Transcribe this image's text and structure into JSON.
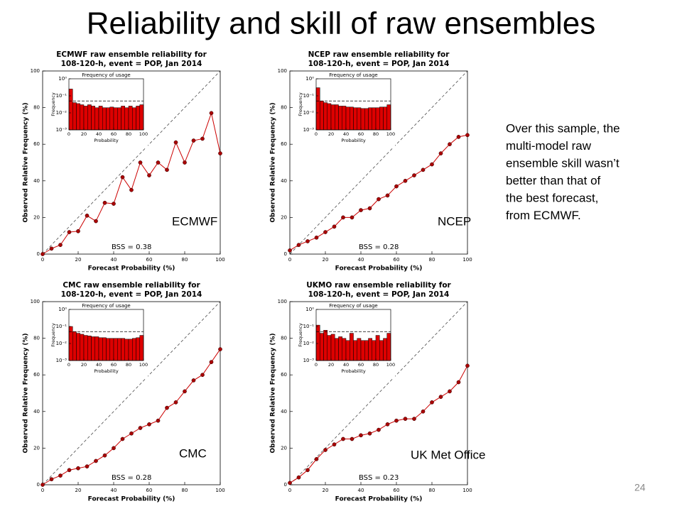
{
  "slide": {
    "title": "Reliability and skill of raw ensembles",
    "note": [
      "Over this sample, the",
      "multi-model raw",
      "ensemble skill wasn’t",
      "better than that of",
      "the best forecast,",
      "from ECMWF."
    ],
    "page_number": "24"
  },
  "chart_data": [
    {
      "type": "line",
      "title": [
        "ECMWF raw ensemble reliability for",
        "108-120-h, event = POP, Jan 2014"
      ],
      "xlabel": "Forecast Probability (%)",
      "ylabel": "Observed Relative Frequency (%)",
      "x": [
        0,
        5,
        10,
        15,
        20,
        25,
        30,
        35,
        40,
        45,
        50,
        55,
        60,
        65,
        70,
        75,
        80,
        85,
        90,
        95,
        100
      ],
      "values": [
        0,
        3,
        5,
        12,
        12.5,
        21,
        18,
        28,
        27.5,
        42,
        35,
        50,
        43,
        50,
        46,
        61,
        50,
        62,
        63,
        77,
        55
      ],
      "color": "#cc0000",
      "xlim": [
        0,
        100
      ],
      "ylim": [
        0,
        100
      ],
      "xticks": [
        0,
        20,
        40,
        60,
        80,
        100
      ],
      "yticks": [
        0,
        20,
        40,
        60,
        80,
        100
      ],
      "annotation": "BSS = 0.38",
      "label": "ECMWF",
      "inset": {
        "type": "histogram",
        "title": "Frequency of usage",
        "xlabel": "Probability",
        "ylabel": "Frequency",
        "bins": [
          0,
          5,
          10,
          15,
          20,
          25,
          30,
          35,
          40,
          45,
          50,
          55,
          60,
          65,
          70,
          75,
          80,
          85,
          90,
          95,
          100
        ],
        "values": [
          0.25,
          0.04,
          0.035,
          0.03,
          0.025,
          0.03,
          0.025,
          0.02,
          0.025,
          0.02,
          0.02,
          0.022,
          0.02,
          0.02,
          0.025,
          0.02,
          0.025,
          0.02,
          0.025,
          0.03
        ],
        "color": "#dd0000",
        "xlim": [
          0,
          100
        ],
        "ylim": [
          0.001,
          1
        ],
        "log_y": true,
        "reference": 0.05,
        "xticks": [
          0,
          20,
          40,
          60,
          80,
          100
        ],
        "yticks": [
          {
            "value": 1,
            "label": "10⁰"
          },
          {
            "value": 0.1,
            "label": "10⁻¹"
          },
          {
            "value": 0.01,
            "label": "10⁻²"
          },
          {
            "value": 0.001,
            "label": "10⁻³"
          }
        ]
      }
    },
    {
      "type": "line",
      "title": [
        "NCEP raw ensemble reliability for",
        "108-120-h, event = POP, Jan 2014"
      ],
      "xlabel": "Forecast Probability (%)",
      "ylabel": "Observed Relative Frequency (%)",
      "x": [
        0,
        5,
        10,
        15,
        20,
        25,
        30,
        35,
        40,
        45,
        50,
        55,
        60,
        65,
        70,
        75,
        80,
        85,
        90,
        95,
        100
      ],
      "values": [
        2,
        5,
        7,
        9,
        12,
        15,
        20,
        20,
        24,
        25,
        30,
        32,
        37,
        40,
        43,
        46,
        49,
        55,
        60,
        64,
        65
      ],
      "color": "#cc0000",
      "xlim": [
        0,
        100
      ],
      "ylim": [
        0,
        100
      ],
      "xticks": [
        0,
        20,
        40,
        60,
        80,
        100
      ],
      "yticks": [
        0,
        20,
        40,
        60,
        80,
        100
      ],
      "annotation": "BSS = 0.28",
      "label": "NCEP",
      "inset": {
        "type": "histogram",
        "title": "Frequency of usage",
        "xlabel": "Probability",
        "ylabel": "Frequency",
        "bins": [
          0,
          5,
          10,
          15,
          20,
          25,
          30,
          35,
          40,
          45,
          50,
          55,
          60,
          65,
          70,
          75,
          80,
          85,
          90,
          95,
          100
        ],
        "values": [
          0.3,
          0.05,
          0.04,
          0.035,
          0.03,
          0.03,
          0.025,
          0.025,
          0.022,
          0.022,
          0.02,
          0.02,
          0.018,
          0.018,
          0.02,
          0.02,
          0.02,
          0.022,
          0.022,
          0.03
        ],
        "color": "#dd0000",
        "xlim": [
          0,
          100
        ],
        "ylim": [
          0.001,
          1
        ],
        "log_y": true,
        "reference": 0.05,
        "xticks": [
          0,
          20,
          40,
          60,
          80,
          100
        ],
        "yticks": [
          {
            "value": 1,
            "label": "10⁰"
          },
          {
            "value": 0.1,
            "label": "10⁻¹"
          },
          {
            "value": 0.01,
            "label": "10⁻²"
          },
          {
            "value": 0.001,
            "label": "10⁻³"
          }
        ]
      }
    },
    {
      "type": "line",
      "title": [
        "CMC raw ensemble reliability for",
        "108-120-h, event = POP, Jan 2014"
      ],
      "xlabel": "Forecast Probability (%)",
      "ylabel": "Observed Relative Frequency (%)",
      "x": [
        0,
        5,
        10,
        15,
        20,
        25,
        30,
        35,
        40,
        45,
        50,
        55,
        60,
        65,
        70,
        75,
        80,
        85,
        90,
        95,
        100
      ],
      "values": [
        0,
        3,
        5,
        8,
        9,
        10,
        13,
        16,
        20,
        25,
        28,
        31,
        33,
        35,
        42,
        45,
        51,
        57,
        60,
        67,
        74
      ],
      "color": "#cc0000",
      "xlim": [
        0,
        100
      ],
      "ylim": [
        0,
        100
      ],
      "xticks": [
        0,
        20,
        40,
        60,
        80,
        100
      ],
      "yticks": [
        0,
        20,
        40,
        60,
        80,
        100
      ],
      "annotation": "BSS = 0.28",
      "label": "CMC",
      "inset": {
        "type": "histogram",
        "title": "Frequency of usage",
        "xlabel": "Probability",
        "ylabel": "Frequency",
        "bins": [
          0,
          5,
          10,
          15,
          20,
          25,
          30,
          35,
          40,
          45,
          50,
          55,
          60,
          65,
          70,
          75,
          80,
          85,
          90,
          95,
          100
        ],
        "values": [
          0.1,
          0.05,
          0.04,
          0.035,
          0.03,
          0.028,
          0.025,
          0.025,
          0.022,
          0.022,
          0.02,
          0.02,
          0.02,
          0.02,
          0.02,
          0.018,
          0.018,
          0.02,
          0.022,
          0.03
        ],
        "color": "#dd0000",
        "xlim": [
          0,
          100
        ],
        "ylim": [
          0.001,
          1
        ],
        "log_y": true,
        "reference": 0.05,
        "xticks": [
          0,
          20,
          40,
          60,
          80,
          100
        ],
        "yticks": [
          {
            "value": 1,
            "label": "10⁰"
          },
          {
            "value": 0.1,
            "label": "10⁻¹"
          },
          {
            "value": 0.01,
            "label": "10⁻²"
          },
          {
            "value": 0.001,
            "label": "10⁻³"
          }
        ]
      }
    },
    {
      "type": "line",
      "title": [
        "UKMO raw ensemble reliability for",
        "108-120-h, event = POP, Jan 2014"
      ],
      "xlabel": "Forecast Probability (%)",
      "ylabel": "Observed Relative Frequency (%)",
      "x": [
        0,
        5,
        10,
        15,
        20,
        25,
        30,
        35,
        40,
        45,
        50,
        55,
        60,
        65,
        70,
        75,
        80,
        85,
        90,
        95,
        100
      ],
      "values": [
        1,
        4,
        8,
        14,
        19,
        22,
        25,
        25,
        27,
        28,
        30,
        33,
        35,
        36,
        36,
        40,
        45,
        48,
        51,
        56,
        65
      ],
      "color": "#cc0000",
      "xlim": [
        0,
        100
      ],
      "ylim": [
        0,
        100
      ],
      "xticks": [
        0,
        20,
        40,
        60,
        80,
        100
      ],
      "yticks": [
        0,
        20,
        40,
        60,
        80,
        100
      ],
      "annotation": "BSS = 0.23",
      "label": "UK Met Office",
      "inset": {
        "type": "histogram",
        "title": "Frequency of usage",
        "xlabel": "Probability",
        "ylabel": "Frequency",
        "bins": [
          0,
          5,
          10,
          15,
          20,
          25,
          30,
          35,
          40,
          45,
          50,
          55,
          60,
          65,
          70,
          75,
          80,
          85,
          90,
          95,
          100
        ],
        "values": [
          0.12,
          0.04,
          0.06,
          0.03,
          0.035,
          0.02,
          0.025,
          0.02,
          0.015,
          0.04,
          0.015,
          0.02,
          0.015,
          0.015,
          0.02,
          0.015,
          0.03,
          0.015,
          0.02,
          0.04
        ],
        "color": "#dd0000",
        "xlim": [
          0,
          100
        ],
        "ylim": [
          0.001,
          1
        ],
        "log_y": true,
        "reference": 0.05,
        "xticks": [
          0,
          20,
          40,
          60,
          80,
          100
        ],
        "yticks": [
          {
            "value": 1,
            "label": "10⁰"
          },
          {
            "value": 0.1,
            "label": "10⁻¹"
          },
          {
            "value": 0.01,
            "label": "10⁻²"
          },
          {
            "value": 0.001,
            "label": "10⁻³"
          }
        ]
      }
    }
  ]
}
